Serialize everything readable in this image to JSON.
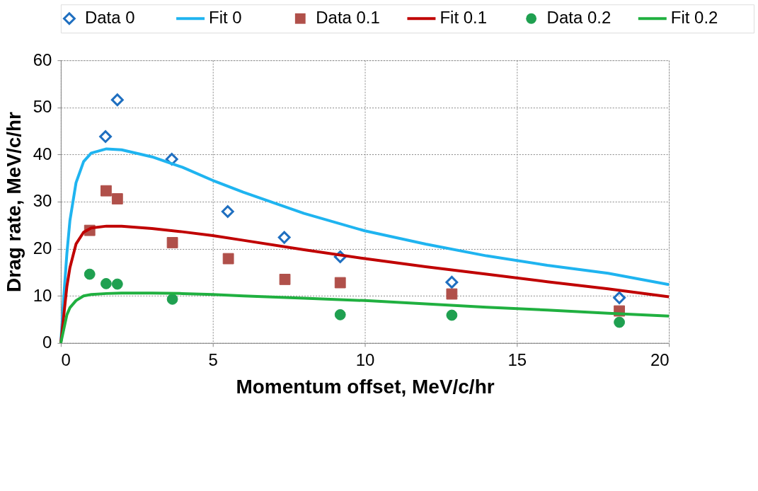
{
  "chart_data": {
    "type": "scatter",
    "xlabel": "Momentum offset, MeV/c/hr",
    "ylabel": "Drag rate, MeV/c/hr",
    "xlim": [
      0,
      20
    ],
    "xticks": [
      0,
      5,
      10,
      15,
      20
    ],
    "ylim": [
      0,
      60
    ],
    "yticks": [
      0,
      10,
      20,
      30,
      40,
      50,
      60
    ],
    "grid": true,
    "legend": "top",
    "series": [
      {
        "name": "Data 0",
        "marker": "diamond",
        "color": "#1f6fc0",
        "x": [
          1.47,
          1.86,
          3.65,
          5.49,
          7.35,
          9.19,
          12.86,
          18.37
        ],
        "values": [
          43.8,
          51.6,
          39.0,
          27.9,
          22.4,
          18.3,
          12.9,
          9.6
        ]
      },
      {
        "name": "Fit 0",
        "type": "line",
        "color": "#1fb4f0",
        "x": [
          0,
          0.1,
          0.2,
          0.3,
          0.5,
          0.75,
          1,
          1.5,
          2,
          3,
          4,
          5,
          6,
          8,
          10,
          12,
          14,
          16,
          18,
          20
        ],
        "values": [
          0,
          10,
          19,
          26,
          34,
          38.5,
          40.3,
          41.2,
          41,
          39.5,
          37.3,
          34.5,
          32,
          27.5,
          23.8,
          21,
          18.5,
          16.5,
          14.8,
          12.4
        ]
      },
      {
        "name": "Data 0.1",
        "marker": "square",
        "color": "#b0504a",
        "x": [
          0.95,
          1.49,
          1.86,
          3.67,
          5.51,
          7.37,
          9.19,
          12.86,
          18.37
        ],
        "values": [
          23.9,
          32.3,
          30.6,
          21.3,
          17.9,
          13.5,
          12.8,
          10.4,
          6.8
        ]
      },
      {
        "name": "Fit 0.1",
        "type": "line",
        "color": "#c00000",
        "x": [
          0,
          0.1,
          0.2,
          0.3,
          0.5,
          0.75,
          1,
          1.5,
          2,
          3,
          4,
          5,
          6,
          8,
          10,
          12,
          14,
          16,
          18,
          20
        ],
        "values": [
          0,
          6,
          12,
          16,
          21,
          23.5,
          24.4,
          24.8,
          24.8,
          24.3,
          23.6,
          22.8,
          21.8,
          19.8,
          17.9,
          16.2,
          14.6,
          13,
          11.5,
          9.8
        ]
      },
      {
        "name": "Data 0.2",
        "marker": "circle",
        "color": "#1fa050",
        "x": [
          0.95,
          1.49,
          1.86,
          3.67,
          9.19,
          12.86,
          18.37
        ],
        "values": [
          14.6,
          12.6,
          12.5,
          9.3,
          6.0,
          5.9,
          4.4
        ]
      },
      {
        "name": "Fit 0.2",
        "type": "line",
        "color": "#20b040",
        "x": [
          0,
          0.1,
          0.2,
          0.3,
          0.5,
          0.75,
          1,
          1.5,
          2,
          3,
          4,
          5,
          6,
          8,
          10,
          12,
          14,
          16,
          18,
          20
        ],
        "values": [
          0,
          3,
          6,
          7.5,
          9,
          10,
          10.3,
          10.5,
          10.6,
          10.6,
          10.5,
          10.3,
          10,
          9.5,
          9,
          8.3,
          7.6,
          7,
          6.3,
          5.7
        ]
      }
    ]
  }
}
